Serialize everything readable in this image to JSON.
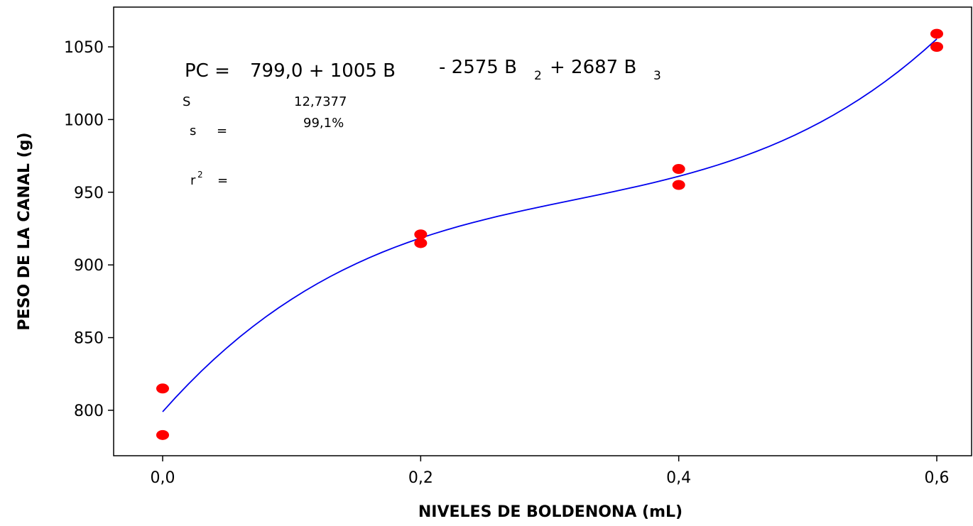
{
  "chart_data": {
    "type": "scatter",
    "xlabel": "NIVELES DE BOLDENONA (mL)",
    "ylabel": "PESO DE LA CANAL (g)",
    "xlim": [
      -0.04,
      0.6
    ],
    "ylim": [
      767,
      1095
    ],
    "xticks": [
      0.0,
      0.2,
      0.4,
      0.6
    ],
    "xtick_labels": [
      "0,0",
      "0,2",
      "0,4",
      "0,6"
    ],
    "yticks": [
      800,
      850,
      900,
      950,
      1000,
      1050
    ],
    "ytick_labels": [
      "800",
      "850",
      "900",
      "950",
      "1000",
      "1050"
    ],
    "grid": false,
    "points": [
      {
        "x": 0.0,
        "y": 815
      },
      {
        "x": 0.0,
        "y": 783
      },
      {
        "x": 0.2,
        "y": 921
      },
      {
        "x": 0.2,
        "y": 915
      },
      {
        "x": 0.4,
        "y": 966
      },
      {
        "x": 0.4,
        "y": 955
      },
      {
        "x": 0.6,
        "y": 1059
      },
      {
        "x": 0.6,
        "y": 1050
      }
    ],
    "fit": {
      "type": "cubic",
      "coefficients": [
        799.0,
        1005,
        -2575,
        2687
      ],
      "x_range": [
        0.0,
        0.6
      ],
      "line_color": "#0000ee"
    },
    "point_color": "#ff0000",
    "annotations": {
      "eq_lhs": "PC =",
      "eq_part1": "799,0 + 1005 B",
      "eq_part2": "- 2575 B",
      "eq_sub2": "2",
      "eq_part3": "+ 2687 B",
      "eq_sub3": "3",
      "s_label_top": "S",
      "s_value": "12,7377",
      "s_label": "s",
      "s_eq": "=",
      "r2_value": "99,1%",
      "r2_label": "r",
      "r2_sup": "2",
      "r2_eq": "="
    }
  }
}
